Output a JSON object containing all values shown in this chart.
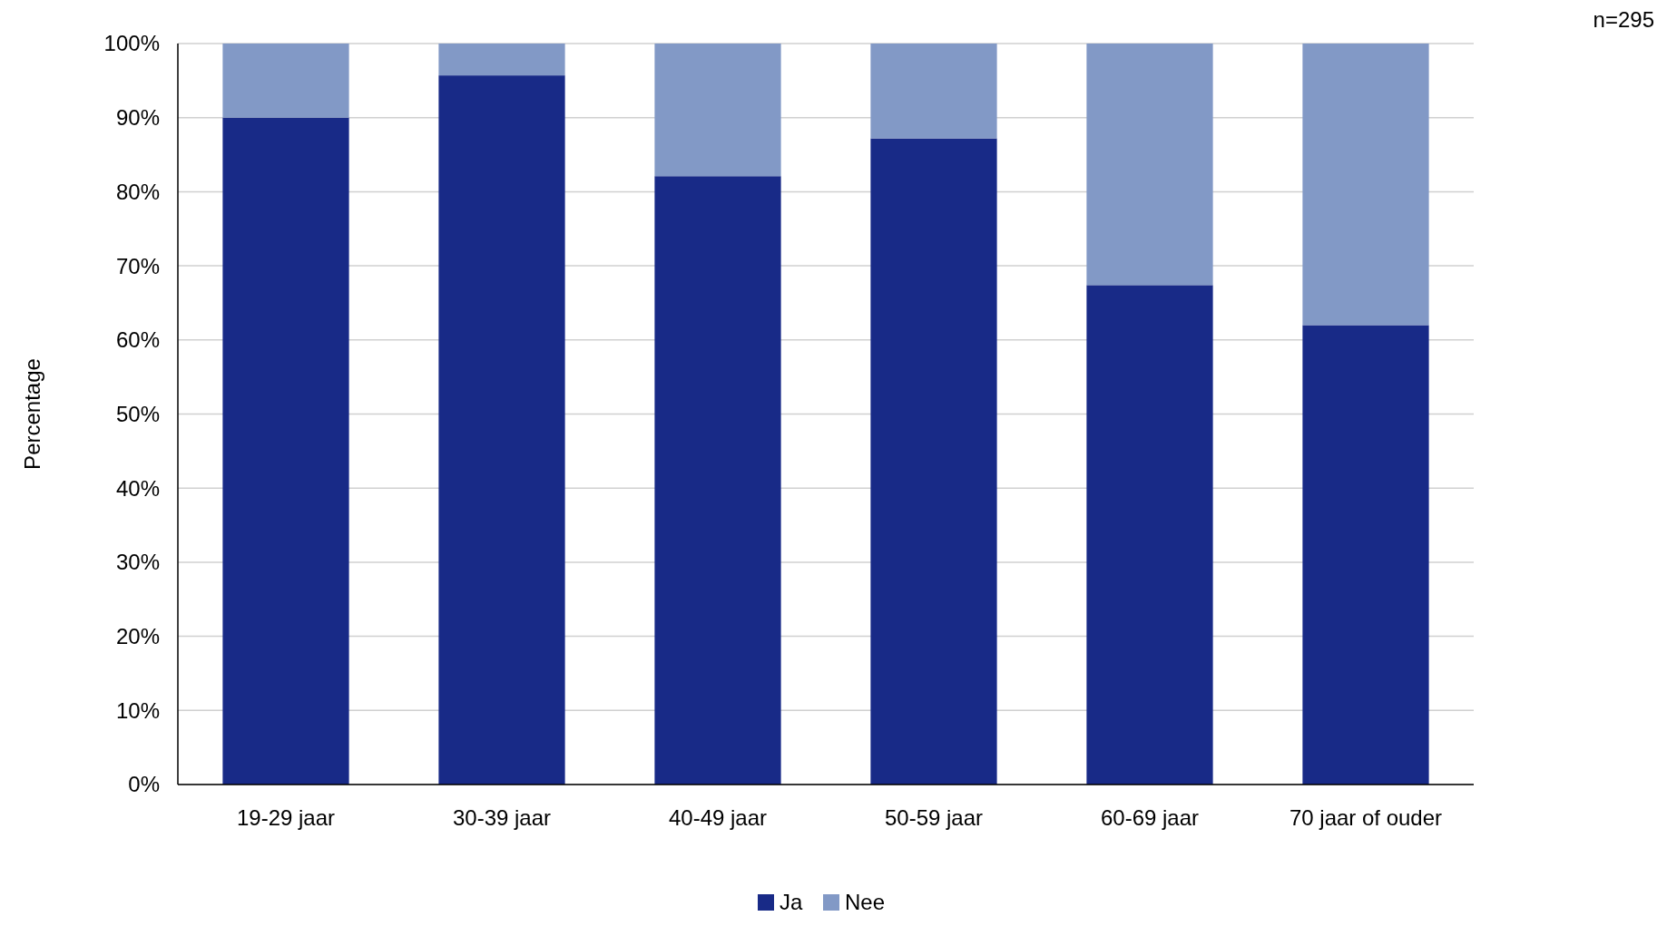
{
  "chart_data": {
    "type": "bar",
    "stacked": true,
    "ylabel": "Percentage",
    "annotations": [
      "n=295"
    ],
    "categories": [
      "19-29 jaar",
      "30-39 jaar",
      "40-49 jaar",
      "50-59 jaar",
      "60-69 jaar",
      "70 jaar of ouder"
    ],
    "series": [
      {
        "name": "Ja",
        "color": "#182a87",
        "values": [
          90,
          95.7,
          82.1,
          87.2,
          67.4,
          62
        ]
      },
      {
        "name": "Nee",
        "color": "#8299c6",
        "values": [
          10,
          4.3,
          17.9,
          12.8,
          32.6,
          38
        ]
      }
    ],
    "ylim": [
      0,
      100
    ],
    "yticks": [
      {
        "value": 0,
        "label": "0%"
      },
      {
        "value": 10,
        "label": "10%"
      },
      {
        "value": 20,
        "label": "20%"
      },
      {
        "value": 30,
        "label": "30%"
      },
      {
        "value": 40,
        "label": "40%"
      },
      {
        "value": 50,
        "label": "50%"
      },
      {
        "value": 60,
        "label": "60%"
      },
      {
        "value": 70,
        "label": "70%"
      },
      {
        "value": 80,
        "label": "80%"
      },
      {
        "value": 90,
        "label": "90%"
      },
      {
        "value": 100,
        "label": "100%"
      }
    ],
    "grid": "y",
    "legend": "bottom"
  }
}
